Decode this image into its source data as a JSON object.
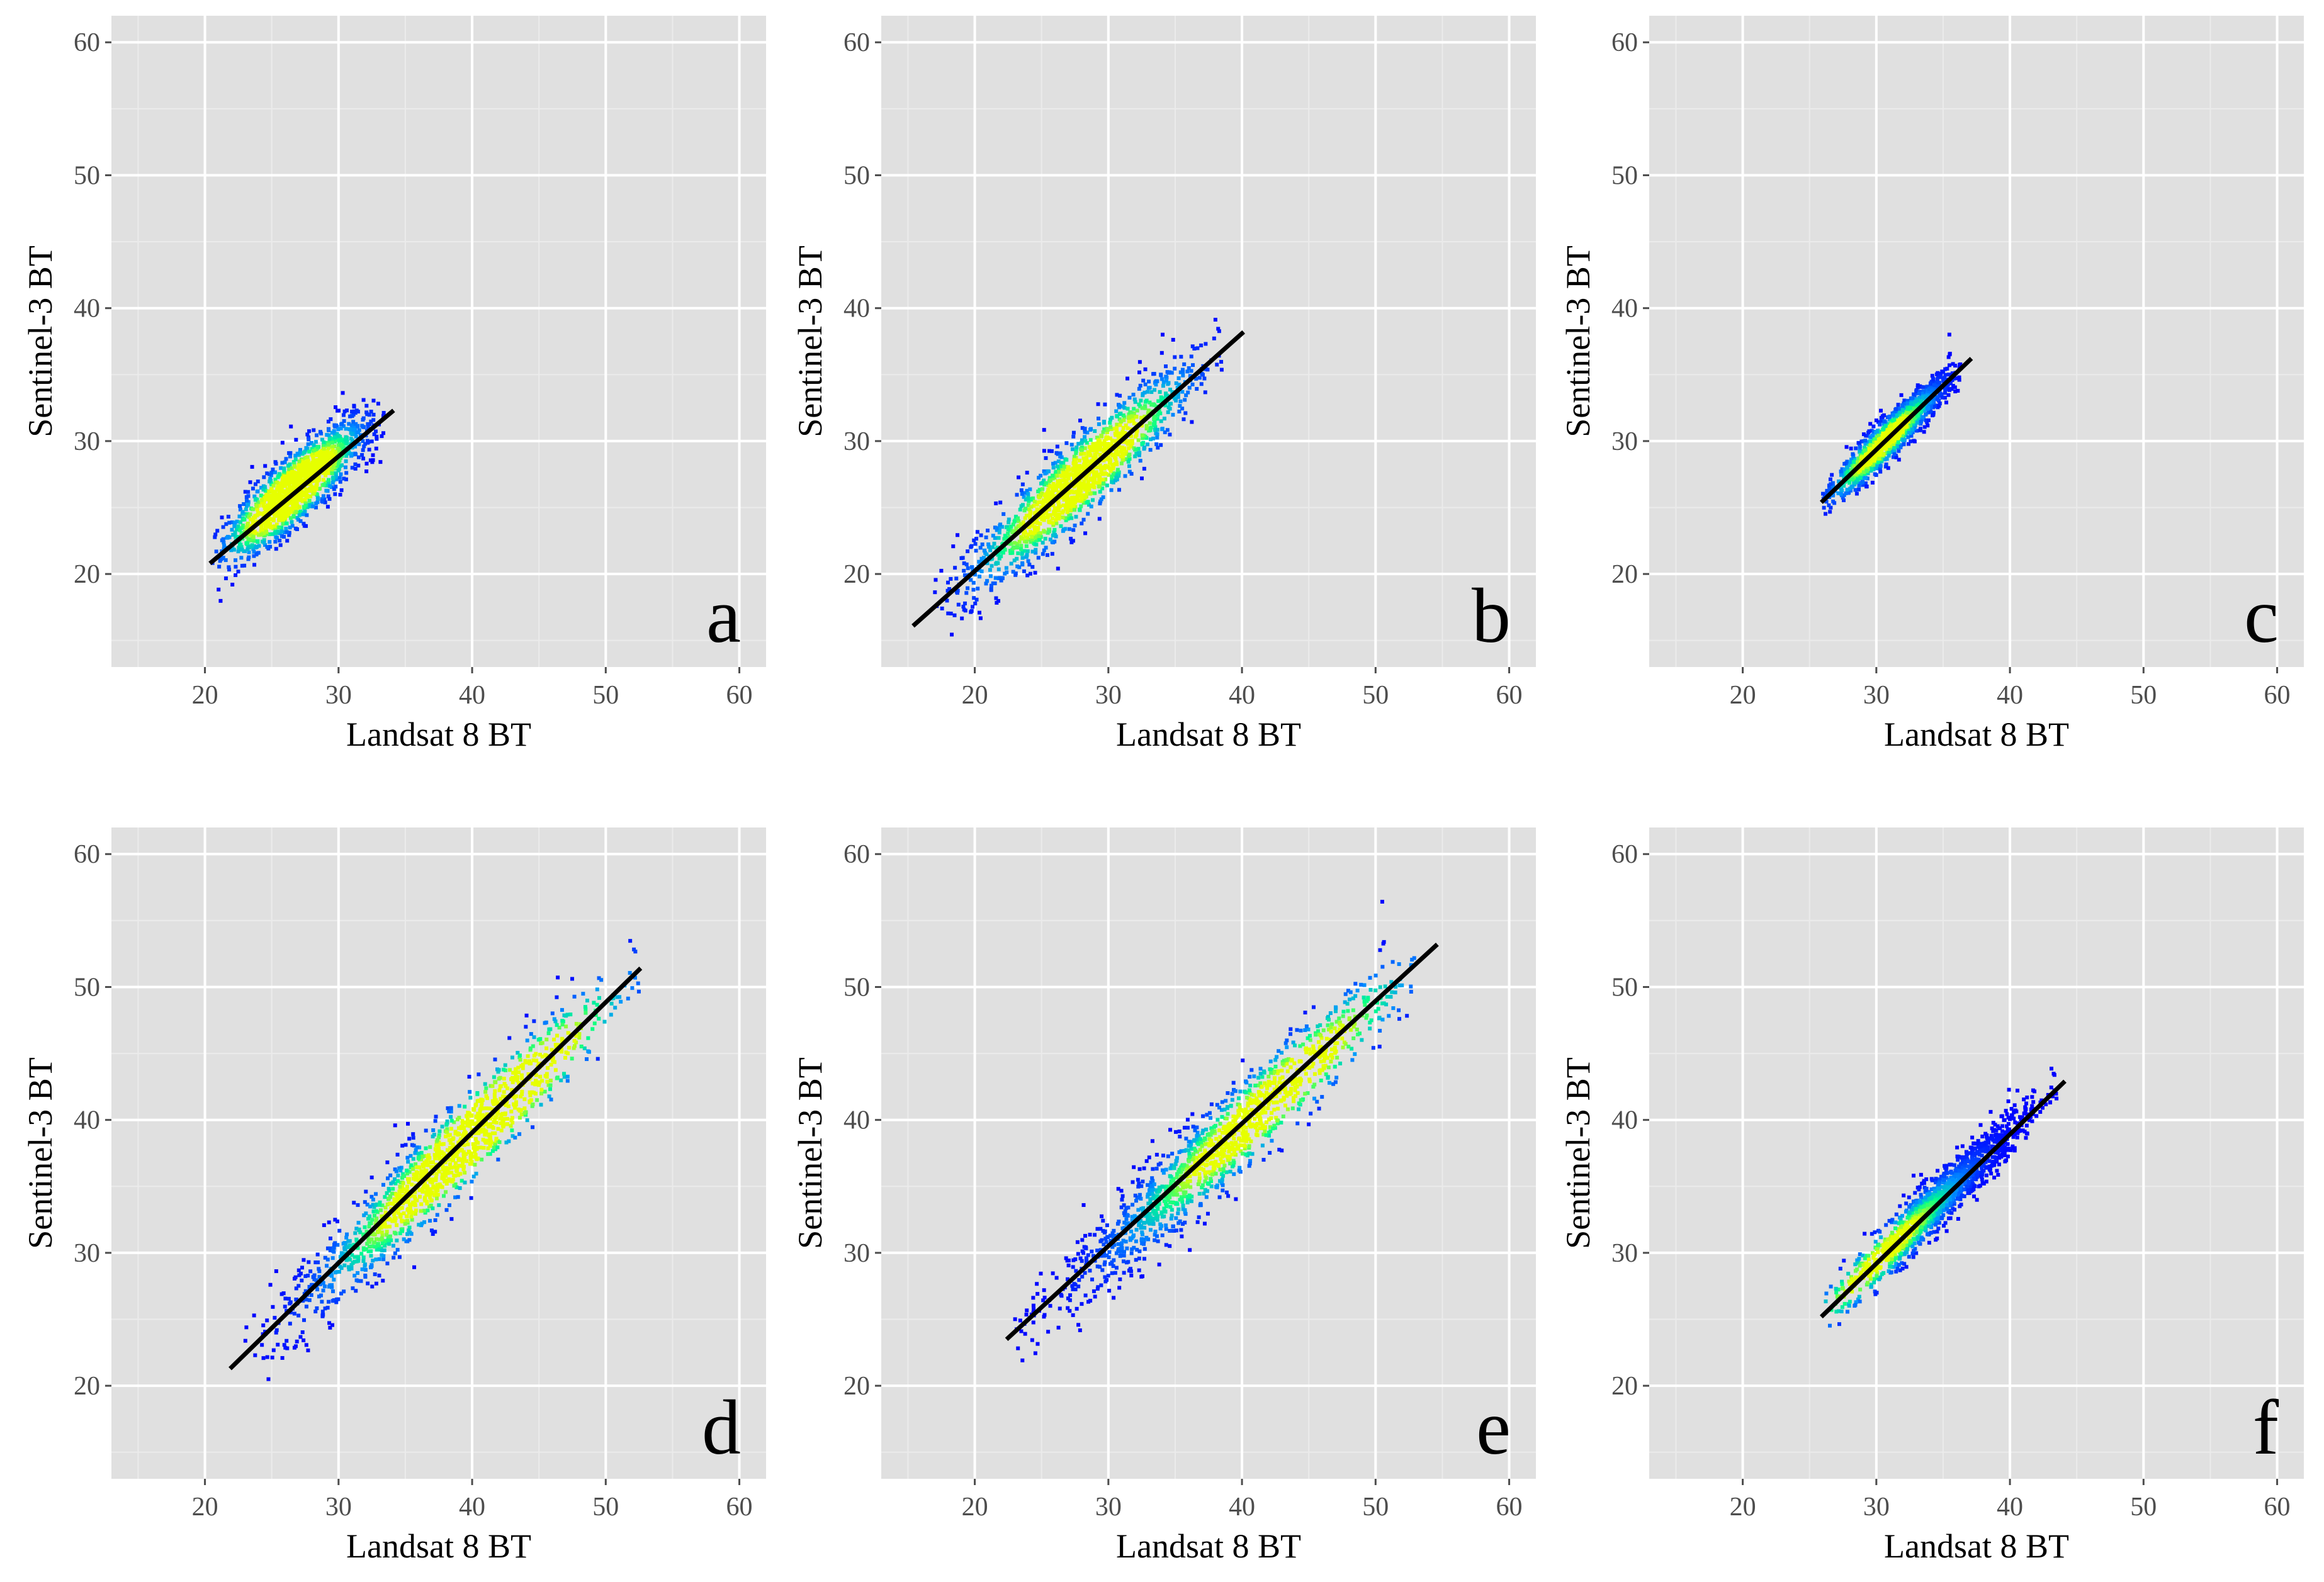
{
  "chart_data": [
    {
      "type": "scatter",
      "panel_label": "a",
      "xlabel": "Landsat 8 BT",
      "ylabel": "Sentinel-3 BT",
      "xlim": [
        13,
        62
      ],
      "ylim": [
        13,
        62
      ],
      "xticks": [
        20,
        30,
        40,
        50,
        60
      ],
      "yticks": [
        20,
        30,
        40,
        50,
        60
      ],
      "grid": true,
      "density_colormap": [
        "#0000ff",
        "#00bfff",
        "#00ff80",
        "#ffff00"
      ],
      "cloud": {
        "x_range": [
          20.5,
          33.5
        ],
        "center": [
          26.5,
          26.2
        ],
        "spread": 1.3,
        "peak": 0.6
      },
      "fit_line": {
        "x": [
          20.5,
          34.0
        ],
        "y": [
          20.9,
          32.2
        ]
      }
    },
    {
      "type": "scatter",
      "panel_label": "b",
      "xlabel": "Landsat 8 BT",
      "ylabel": "Sentinel-3 BT",
      "xlim": [
        13,
        62
      ],
      "ylim": [
        13,
        62
      ],
      "xticks": [
        20,
        30,
        40,
        50,
        60
      ],
      "yticks": [
        20,
        30,
        40,
        50,
        60
      ],
      "grid": true,
      "density_colormap": [
        "#0000ff",
        "#00bfff",
        "#00ff80",
        "#ffff00"
      ],
      "cloud": {
        "x_range": [
          17.0,
          38.5
        ],
        "center": [
          28.0,
          27.3
        ],
        "spread": 1.6,
        "peak": 0.5
      },
      "fit_line": {
        "x": [
          15.5,
          40.0
        ],
        "y": [
          16.2,
          38.1
        ]
      }
    },
    {
      "type": "scatter",
      "panel_label": "c",
      "xlabel": "Landsat 8 BT",
      "ylabel": "Sentinel-3 BT",
      "xlim": [
        13,
        62
      ],
      "ylim": [
        13,
        62
      ],
      "xticks": [
        20,
        30,
        40,
        50,
        60
      ],
      "yticks": [
        20,
        30,
        40,
        50,
        60
      ],
      "grid": true,
      "density_colormap": [
        "#0000ff",
        "#00bfff",
        "#00ff80",
        "#ffff00"
      ],
      "cloud": {
        "x_range": [
          26.0,
          36.5
        ],
        "center": [
          30.5,
          29.8
        ],
        "spread": 0.8,
        "peak": 0.45
      },
      "fit_line": {
        "x": [
          26.0,
          37.0
        ],
        "y": [
          25.5,
          36.1
        ]
      }
    },
    {
      "type": "scatter",
      "panel_label": "d",
      "xlabel": "Landsat 8 BT",
      "ylabel": "Sentinel-3 BT",
      "xlim": [
        13,
        62
      ],
      "ylim": [
        13,
        62
      ],
      "xticks": [
        20,
        30,
        40,
        50,
        60
      ],
      "yticks": [
        20,
        30,
        40,
        50,
        60
      ],
      "grid": true,
      "density_colormap": [
        "#0000ff",
        "#00bfff",
        "#00ff80",
        "#ffff00"
      ],
      "cloud": {
        "x_range": [
          23.0,
          52.5
        ],
        "center": [
          40.5,
          39.3
        ],
        "spread": 1.7,
        "peak": 0.6
      },
      "fit_line": {
        "x": [
          22.0,
          52.5
        ],
        "y": [
          21.4,
          51.3
        ]
      }
    },
    {
      "type": "scatter",
      "panel_label": "e",
      "xlabel": "Landsat 8 BT",
      "ylabel": "Sentinel-3 BT",
      "xlim": [
        13,
        62
      ],
      "ylim": [
        13,
        62
      ],
      "xticks": [
        20,
        30,
        40,
        50,
        60
      ],
      "yticks": [
        20,
        30,
        40,
        50,
        60
      ],
      "grid": true,
      "density_colormap": [
        "#0000ff",
        "#00bfff",
        "#00ff80",
        "#ffff00"
      ],
      "cloud": {
        "x_range": [
          23.0,
          53.5
        ],
        "center": [
          42.0,
          41.3
        ],
        "spread": 1.7,
        "peak": 0.45
      },
      "fit_line": {
        "x": [
          22.5,
          54.5
        ],
        "y": [
          23.6,
          53.1
        ]
      }
    },
    {
      "type": "scatter",
      "panel_label": "f",
      "xlabel": "Landsat 8 BT",
      "ylabel": "Sentinel-3 BT",
      "xlim": [
        13,
        62
      ],
      "ylim": [
        13,
        62
      ],
      "xticks": [
        20,
        30,
        40,
        50,
        60
      ],
      "yticks": [
        20,
        30,
        40,
        50,
        60
      ],
      "grid": true,
      "density_colormap": [
        "#0000ff",
        "#00bfff",
        "#00ff80",
        "#ffff00"
      ],
      "cloud": {
        "x_range": [
          26.2,
          43.5
        ],
        "center": [
          30.5,
          29.8
        ],
        "spread": 1.0,
        "peak": 0.35
      },
      "fit_line": {
        "x": [
          26.0,
          44.0
        ],
        "y": [
          25.3,
          42.8
        ]
      }
    }
  ]
}
